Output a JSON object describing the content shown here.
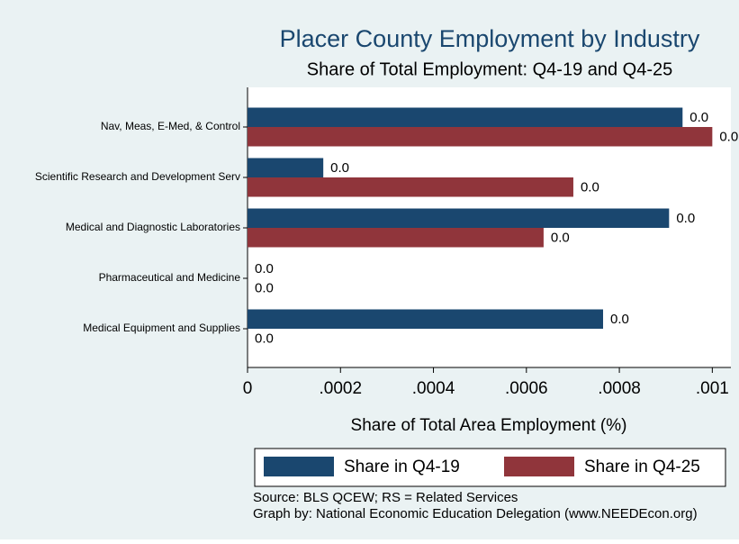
{
  "chart_data": {
    "type": "hbar",
    "title": "Placer County Employment by Industry",
    "subtitle": "Share of Total Employment: Q4-19 and Q4-25",
    "x_label": "Share of Total Area Employment (%)",
    "categories": [
      "Nav, Meas, E-Med, & Control",
      "Scientific Research and Development Serv",
      "Medical and Diagnostic Laboratories",
      "Pharmaceutical and Medicine",
      "Medical Equipment and Supplies"
    ],
    "series": [
      {
        "name": "Share in Q4-19",
        "color": "#1a476f",
        "values": [
          0.000936,
          0.000163,
          0.000907,
          0,
          0.000765
        ],
        "value_labels": [
          "0.0",
          "0.0",
          "0.0",
          "0.0",
          "0.0"
        ]
      },
      {
        "name": "Share in Q4-25",
        "color": "#90353b",
        "values": [
          0.001,
          0.000701,
          0.000637,
          0,
          0
        ],
        "value_labels": [
          "0.0",
          "0.0",
          "0.0",
          "0.0",
          "0.0"
        ]
      }
    ],
    "xlim": [
      0,
      0.00104
    ],
    "xticks": [
      0,
      {
        "value": 0.0002,
        "label": ".0002"
      },
      {
        "value": 0.0004,
        "label": ".0004"
      },
      {
        "value": 0.0006,
        "label": ".0006"
      },
      {
        "value": 0.0008,
        "label": ".0008"
      },
      {
        "value": 0.001,
        "label": ".001"
      }
    ],
    "notes": [
      "Source: BLS QCEW; RS = Related Services",
      "Graph by: National Economic Education Delegation (www.NEEDEcon.org)"
    ]
  }
}
